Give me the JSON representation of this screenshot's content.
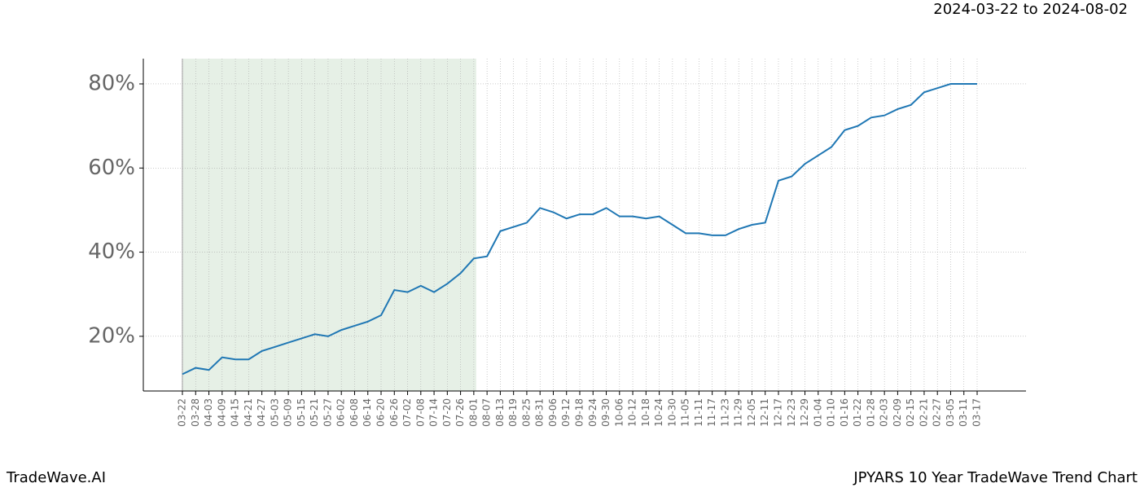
{
  "header": "2024-03-22 to 2024-08-02",
  "footer_left": "TradeWave.AI",
  "footer_right": "JPYARS 10 Year TradeWave Trend Chart",
  "chart_data": {
    "type": "line",
    "x": [
      "03-22",
      "03-28",
      "04-03",
      "04-09",
      "04-15",
      "04-21",
      "04-27",
      "05-03",
      "05-09",
      "05-15",
      "05-21",
      "05-27",
      "06-02",
      "06-08",
      "06-14",
      "06-20",
      "06-26",
      "07-02",
      "07-08",
      "07-14",
      "07-20",
      "07-26",
      "08-01",
      "08-07",
      "08-13",
      "08-19",
      "08-25",
      "08-31",
      "09-06",
      "09-12",
      "09-18",
      "09-24",
      "09-30",
      "10-06",
      "10-12",
      "10-18",
      "10-24",
      "10-30",
      "11-05",
      "11-11",
      "11-17",
      "11-23",
      "11-29",
      "12-05",
      "12-11",
      "12-17",
      "12-23",
      "12-29",
      "01-04",
      "01-10",
      "01-16",
      "01-22",
      "01-28",
      "02-03",
      "02-09",
      "02-15",
      "02-21",
      "02-27",
      "03-05",
      "03-11",
      "03-17"
    ],
    "series": [
      {
        "name": "JPYARS",
        "color": "#1f77b4",
        "values": [
          11,
          12.5,
          12,
          15,
          14.5,
          14.5,
          16.5,
          17.5,
          18.5,
          19.5,
          20.5,
          20,
          21.5,
          22.5,
          23.5,
          25,
          31,
          30.5,
          32,
          30.5,
          32.5,
          35,
          38.5,
          39,
          45,
          46,
          47,
          50.5,
          49.5,
          48,
          49,
          49,
          50.5,
          48.5,
          48.5,
          48,
          48.5,
          46.5,
          44.5,
          44.5,
          44,
          44,
          45.5,
          46.5,
          47,
          57,
          58,
          61,
          63,
          65,
          69,
          70,
          72,
          72.5,
          74,
          75,
          78,
          79,
          80,
          80,
          80
        ]
      }
    ],
    "highlight": {
      "start": "03-22",
      "end": "08-01",
      "color": "#e6f0e6"
    },
    "ylim": [
      7,
      86
    ],
    "yticks": [
      {
        "value": 20,
        "label": "20%"
      },
      {
        "value": 40,
        "label": "40%"
      },
      {
        "value": 60,
        "label": "60%"
      },
      {
        "value": 80,
        "label": "80%"
      }
    ],
    "grid": true
  }
}
